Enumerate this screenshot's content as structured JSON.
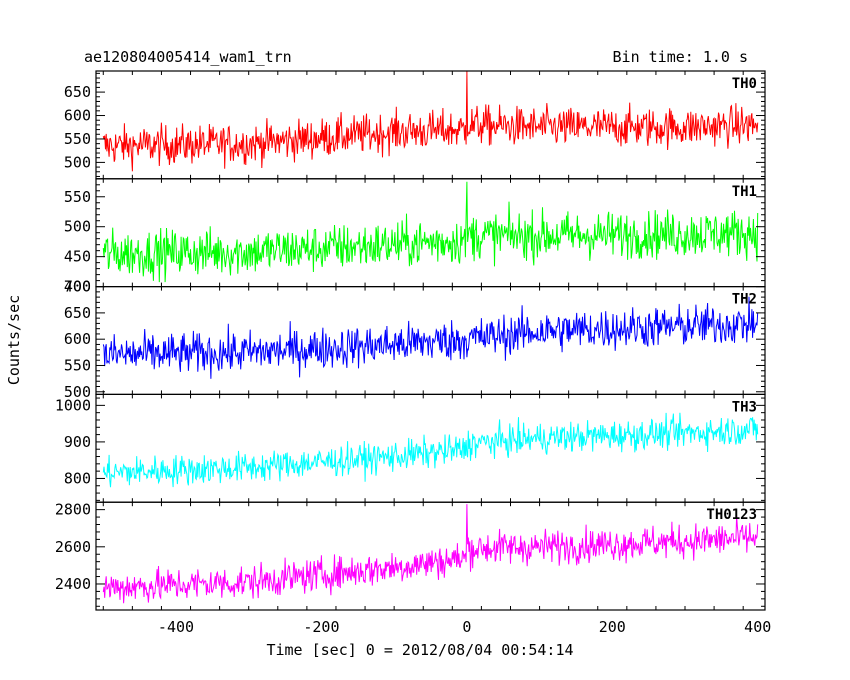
{
  "header": {
    "left_title": "ae120804005414_wam1_trn",
    "right_title": "Bin time: 1.0 s"
  },
  "chart_data": {
    "type": "line",
    "title": "ae120804005414_wam1_trn",
    "subtitle": "Bin time: 1.0 s",
    "xlabel": "Time [sec] 0 = 2012/08/04 00:54:14",
    "ylabel": "Counts/sec",
    "xlim": [
      -510,
      410
    ],
    "xticks": [
      -400,
      -200,
      0,
      200,
      400
    ],
    "bin_time_s": 1.0,
    "grid": false,
    "panels": [
      {
        "name": "TH0",
        "color": "#ff0000",
        "ylim": [
          465,
          695
        ],
        "yticks": [
          500,
          550,
          600,
          650
        ],
        "x": [
          -500,
          -300,
          -100,
          -1,
          1,
          100,
          300,
          400
        ],
        "y": [
          535,
          540,
          565,
          570,
          580,
          575,
          575,
          580
        ],
        "noise": 30,
        "spike": {
          "x": 0,
          "y": 695
        }
      },
      {
        "name": "TH1",
        "color": "#00ff00",
        "ylim": [
          400,
          580
        ],
        "yticks": [
          400,
          450,
          500,
          550
        ],
        "x": [
          -500,
          -300,
          -100,
          -1,
          1,
          100,
          300,
          400
        ],
        "y": [
          455,
          458,
          470,
          478,
          485,
          485,
          488,
          490
        ],
        "noise": 28,
        "spike": {
          "x": 0,
          "y": 575
        }
      },
      {
        "name": "TH2",
        "color": "#0000ff",
        "ylim": [
          495,
          700
        ],
        "yticks": [
          500,
          550,
          600,
          650,
          700
        ],
        "x": [
          -500,
          -300,
          -100,
          0,
          100,
          300,
          400
        ],
        "y": [
          570,
          575,
          590,
          600,
          615,
          625,
          630
        ],
        "noise": 28,
        "spike": null
      },
      {
        "name": "TH3",
        "color": "#00ffff",
        "ylim": [
          735,
          1030
        ],
        "yticks": [
          800,
          900,
          1000
        ],
        "x": [
          -500,
          -300,
          -100,
          -1,
          1,
          100,
          300,
          400
        ],
        "y": [
          815,
          830,
          860,
          880,
          895,
          910,
          925,
          935
        ],
        "noise": 30,
        "spike": null
      },
      {
        "name": "TH0123",
        "color": "#ff00ff",
        "ylim": [
          2260,
          2840
        ],
        "yticks": [
          2400,
          2600,
          2800
        ],
        "x": [
          -500,
          -300,
          -100,
          -1,
          1,
          100,
          300,
          400
        ],
        "y": [
          2380,
          2410,
          2490,
          2540,
          2590,
          2600,
          2630,
          2650
        ],
        "noise": 65,
        "spike": {
          "x": 0,
          "y": 2830
        }
      }
    ]
  }
}
